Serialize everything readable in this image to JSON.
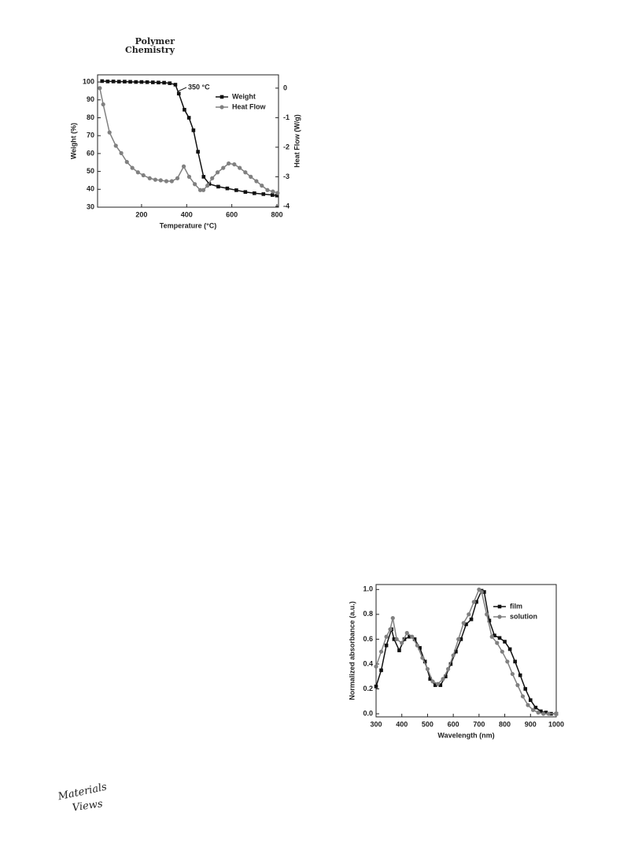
{
  "header": {
    "journal_line1": "Polymer",
    "journal_line2": "Chemistry"
  },
  "chart_data": [
    {
      "type": "line",
      "xlabel": "Temperature (°C)",
      "ylabel": "Weight (%)",
      "y2label": "Heat Flow (W/g)",
      "xlim": [
        5,
        807
      ],
      "xticks": [
        200,
        400,
        600,
        800
      ],
      "ylim": [
        30,
        104
      ],
      "yticks": [
        30,
        40,
        50,
        60,
        70,
        80,
        90,
        100
      ],
      "y2lim": [
        -4.03,
        0.45
      ],
      "y2ticks": [
        -4,
        -3,
        -2,
        -1,
        0
      ],
      "legend": "upper right",
      "annotations": [
        {
          "text": "350 °C"
        }
      ],
      "series": [
        {
          "name": "Weight",
          "color": "#111111",
          "marker": "square",
          "x": [
            25,
            50,
            75,
            100,
            125,
            150,
            175,
            200,
            225,
            250,
            275,
            300,
            325,
            350,
            365,
            390,
            410,
            430,
            450,
            475,
            500,
            540,
            580,
            620,
            660,
            700,
            740,
            780,
            800
          ],
          "values": [
            100.5,
            100.3,
            100.3,
            100.2,
            100.2,
            100.1,
            100,
            100,
            99.9,
            99.8,
            99.7,
            99.6,
            99.3,
            98.5,
            93.5,
            84.5,
            80,
            73,
            61,
            47,
            43,
            41.5,
            40.5,
            39.5,
            38.5,
            37.8,
            37.3,
            36.8,
            36.5
          ]
        },
        {
          "name": "Heat Flow",
          "color": "#808080",
          "marker": "circle",
          "axis": "y2",
          "x": [
            15,
            30,
            58,
            86,
            110,
            135,
            159,
            184,
            208,
            236,
            261,
            285,
            310,
            334,
            359,
            387,
            411,
            436,
            460,
            474,
            492,
            513,
            537,
            562,
            586,
            611,
            635,
            660,
            684,
            709,
            733,
            758,
            782,
            803
          ],
          "values": [
            0,
            -0.55,
            -1.5,
            -1.95,
            -2.2,
            -2.5,
            -2.7,
            -2.85,
            -2.95,
            -3.05,
            -3.1,
            -3.12,
            -3.15,
            -3.15,
            -3.05,
            -2.65,
            -3.0,
            -3.25,
            -3.45,
            -3.45,
            -3.3,
            -3.05,
            -2.85,
            -2.7,
            -2.55,
            -2.58,
            -2.7,
            -2.85,
            -3.0,
            -3.15,
            -3.3,
            -3.45,
            -3.5,
            -3.55
          ]
        }
      ]
    },
    {
      "type": "line",
      "xlabel": "Wavelength (nm)",
      "ylabel": "Normalized absorbance (a.u.)",
      "xlim": [
        300,
        1000
      ],
      "xticks": [
        300,
        400,
        500,
        600,
        700,
        800,
        900,
        1000
      ],
      "ylim": [
        -0.025,
        1.04
      ],
      "yticks": [
        {
          "value": 0,
          "label": "0.0"
        },
        0.2,
        0.4,
        0.6,
        0.8,
        {
          "value": 1,
          "label": "1.0"
        }
      ],
      "legend": "upper right",
      "series": [
        {
          "name": "film",
          "color": "#111111",
          "marker": "square",
          "x": [
            300,
            320,
            340,
            360,
            370,
            390,
            410,
            430,
            450,
            470,
            490,
            510,
            530,
            550,
            570,
            590,
            610,
            630,
            650,
            670,
            690,
            710,
            720,
            740,
            760,
            780,
            800,
            820,
            840,
            860,
            880,
            900,
            920,
            940,
            960,
            980,
            1000
          ],
          "values": [
            0.22,
            0.35,
            0.55,
            0.68,
            0.6,
            0.51,
            0.6,
            0.62,
            0.6,
            0.53,
            0.42,
            0.28,
            0.23,
            0.23,
            0.3,
            0.4,
            0.5,
            0.6,
            0.72,
            0.76,
            0.9,
            0.99,
            0.98,
            0.75,
            0.63,
            0.61,
            0.58,
            0.52,
            0.42,
            0.31,
            0.2,
            0.11,
            0.05,
            0.02,
            0.01,
            0,
            0
          ]
        },
        {
          "name": "solution",
          "color": "#808080",
          "marker": "circle",
          "x": [
            300,
            320,
            340,
            355,
            365,
            380,
            400,
            420,
            440,
            460,
            480,
            500,
            520,
            540,
            560,
            580,
            600,
            620,
            640,
            660,
            680,
            700,
            710,
            730,
            750,
            770,
            790,
            810,
            830,
            850,
            870,
            890,
            910,
            930,
            950,
            970,
            1000
          ],
          "values": [
            0.38,
            0.5,
            0.62,
            0.68,
            0.77,
            0.6,
            0.57,
            0.65,
            0.62,
            0.55,
            0.45,
            0.36,
            0.26,
            0.24,
            0.28,
            0.36,
            0.47,
            0.6,
            0.73,
            0.8,
            0.9,
            1,
            0.98,
            0.8,
            0.62,
            0.57,
            0.5,
            0.42,
            0.32,
            0.23,
            0.14,
            0.07,
            0.03,
            0.01,
            0,
            0,
            0
          ]
        }
      ]
    }
  ],
  "footer": {
    "logo_line1": "Materials",
    "logo_line2": "Views"
  }
}
